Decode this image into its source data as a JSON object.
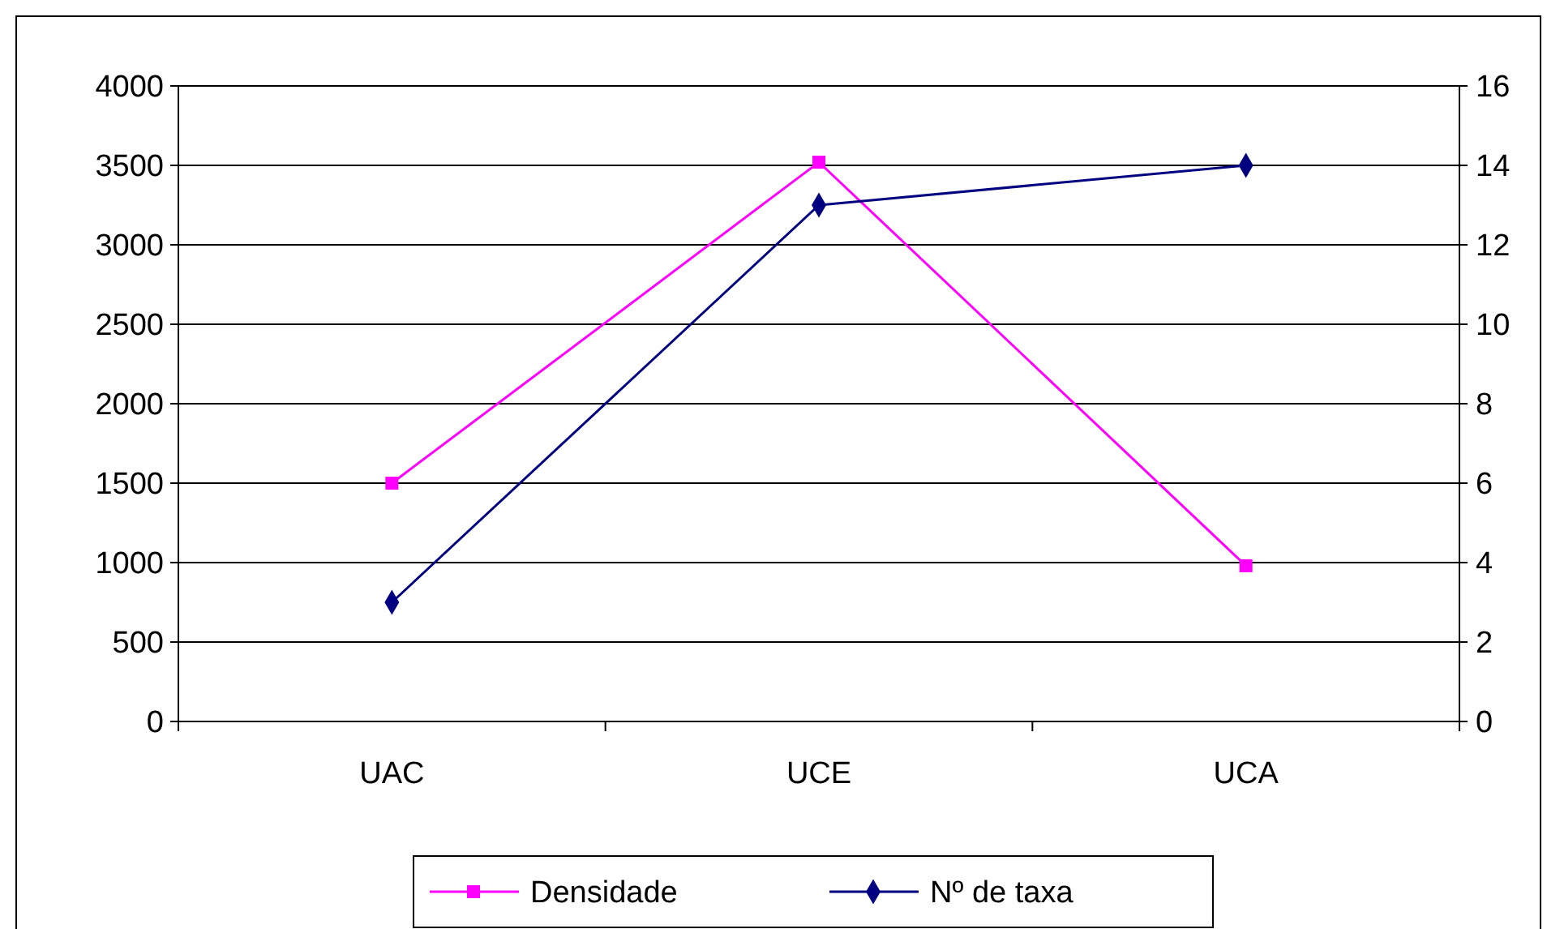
{
  "chart_data": {
    "type": "line",
    "categories": [
      "UAC",
      "UCE",
      "UCA"
    ],
    "series": [
      {
        "name": "Densidade",
        "color": "#ff00ff",
        "values": [
          1500,
          3520,
          980
        ],
        "marker": "square"
      },
      {
        "name": "Nº de taxa",
        "color": "#000080",
        "values": [
          3,
          13,
          14
        ],
        "axis": "y2",
        "marker": "diamond"
      }
    ],
    "ylim": [
      0,
      4000
    ],
    "yticks": [
      0,
      500,
      1000,
      1500,
      2000,
      2500,
      3000,
      3500,
      4000
    ],
    "y2lim": [
      0,
      16
    ],
    "y2ticks": [
      0,
      2,
      4,
      6,
      8,
      10,
      12,
      14,
      16
    ],
    "grid": "y",
    "legend": "bottom",
    "line_style": "solid"
  }
}
